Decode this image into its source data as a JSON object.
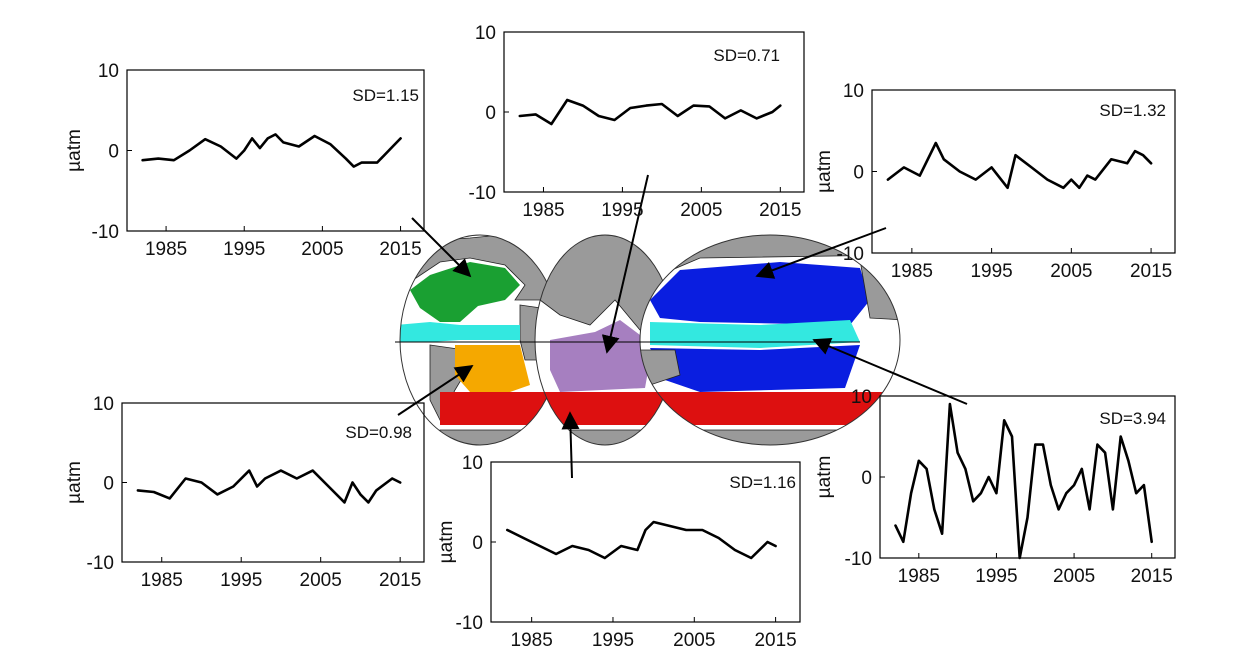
{
  "chart_data": [
    {
      "type": "line",
      "region": "north-atlantic",
      "annotation": "SD=1.15",
      "ylabel": "µatm",
      "ylim": [
        -10,
        10
      ],
      "yticks": [
        10,
        0,
        -10
      ],
      "xlim": [
        1980,
        2018
      ],
      "xticks": [
        1985,
        1995,
        2005,
        2015
      ],
      "x": [
        1982,
        1984,
        1986,
        1988,
        1990,
        1992,
        1994,
        1995,
        1996,
        1997,
        1998,
        1999,
        2000,
        2002,
        2004,
        2006,
        2008,
        2009,
        2010,
        2012,
        2014,
        2015
      ],
      "y": [
        -1.2,
        -1.0,
        -1.2,
        0.0,
        1.4,
        0.5,
        -1.0,
        0.0,
        1.5,
        0.3,
        1.5,
        2.0,
        1.0,
        0.5,
        1.8,
        0.8,
        -1.0,
        -2.0,
        -1.5,
        -1.5,
        0.5,
        1.5
      ]
    },
    {
      "type": "line",
      "region": "indian-ocean",
      "annotation": "SD=0.71",
      "ylabel": "",
      "ylim": [
        -10,
        10
      ],
      "yticks": [
        10,
        0,
        -10
      ],
      "xlim": [
        1980,
        2018
      ],
      "xticks": [
        1985,
        1995,
        2005,
        2015
      ],
      "x": [
        1982,
        1984,
        1986,
        1988,
        1990,
        1992,
        1994,
        1996,
        1998,
        2000,
        2002,
        2004,
        2006,
        2008,
        2010,
        2012,
        2014,
        2015
      ],
      "y": [
        -0.5,
        -0.3,
        -1.5,
        1.5,
        0.8,
        -0.5,
        -1.0,
        0.5,
        0.8,
        1.0,
        -0.5,
        0.8,
        0.7,
        -0.8,
        0.2,
        -0.8,
        0.0,
        0.8
      ]
    },
    {
      "type": "line",
      "region": "north-pacific",
      "annotation": "SD=1.32",
      "ylabel": "µatm",
      "ylim": [
        -10,
        10
      ],
      "yticks": [
        10,
        0,
        -10
      ],
      "xlim": [
        1980,
        2018
      ],
      "xticks": [
        1985,
        1995,
        2005,
        2015
      ],
      "x": [
        1982,
        1984,
        1986,
        1988,
        1989,
        1991,
        1993,
        1995,
        1997,
        1998,
        2000,
        2002,
        2004,
        2005,
        2006,
        2007,
        2008,
        2010,
        2012,
        2013,
        2014,
        2015
      ],
      "y": [
        -1.0,
        0.5,
        -0.5,
        3.5,
        1.5,
        0.0,
        -1.0,
        0.5,
        -2.0,
        2.0,
        0.5,
        -1.0,
        -2.0,
        -1.0,
        -2.0,
        -0.5,
        -1.0,
        1.5,
        1.0,
        2.5,
        2.0,
        1.0
      ]
    },
    {
      "type": "line",
      "region": "south-atlantic",
      "annotation": "SD=0.98",
      "ylabel": "µatm",
      "ylim": [
        -10,
        10
      ],
      "yticks": [
        10,
        0,
        -10
      ],
      "xlim": [
        1980,
        2018
      ],
      "xticks": [
        1985,
        1995,
        2005,
        2015
      ],
      "x": [
        1982,
        1984,
        1986,
        1988,
        1990,
        1992,
        1994,
        1996,
        1997,
        1998,
        2000,
        2002,
        2004,
        2006,
        2008,
        2009,
        2010,
        2011,
        2012,
        2014,
        2015
      ],
      "y": [
        -1.0,
        -1.2,
        -2.0,
        0.5,
        0.0,
        -1.5,
        -0.5,
        1.5,
        -0.5,
        0.5,
        1.5,
        0.5,
        1.5,
        -0.5,
        -2.5,
        0.0,
        -1.5,
        -2.5,
        -1.0,
        0.5,
        0.0
      ]
    },
    {
      "type": "line",
      "region": "southern-ocean",
      "annotation": "SD=1.16",
      "ylabel": "µatm",
      "ylim": [
        -10,
        10
      ],
      "yticks": [
        10,
        0,
        -10
      ],
      "xlim": [
        1980,
        2018
      ],
      "xticks": [
        1985,
        1995,
        2005,
        2015
      ],
      "x": [
        1982,
        1984,
        1986,
        1988,
        1990,
        1992,
        1994,
        1996,
        1998,
        1999,
        2000,
        2002,
        2004,
        2006,
        2008,
        2010,
        2012,
        2014,
        2015
      ],
      "y": [
        1.5,
        0.5,
        -0.5,
        -1.5,
        -0.5,
        -1.0,
        -2.0,
        -0.5,
        -1.0,
        1.5,
        2.5,
        2.0,
        1.5,
        1.5,
        0.5,
        -1.0,
        -2.0,
        0.0,
        -0.5
      ]
    },
    {
      "type": "line",
      "region": "equatorial-pacific",
      "annotation": "SD=3.94",
      "ylabel": "µatm",
      "ylim": [
        -10,
        10
      ],
      "yticks": [
        10,
        0,
        -10
      ],
      "xlim": [
        1980,
        2018
      ],
      "xticks": [
        1985,
        1995,
        2005,
        2015
      ],
      "x": [
        1982,
        1983,
        1984,
        1985,
        1986,
        1987,
        1988,
        1989,
        1990,
        1991,
        1992,
        1993,
        1994,
        1995,
        1996,
        1997,
        1998,
        1999,
        2000,
        2001,
        2002,
        2003,
        2004,
        2005,
        2006,
        2007,
        2008,
        2009,
        2010,
        2011,
        2012,
        2013,
        2014,
        2015
      ],
      "y": [
        -6,
        -8,
        -2,
        2,
        1,
        -4,
        -7,
        9,
        3,
        1,
        -3,
        -2,
        0,
        -2,
        7,
        5,
        -10,
        -5,
        4,
        4,
        -1,
        -4,
        -2,
        -1,
        1,
        -4,
        4,
        3,
        -4,
        5,
        2,
        -2,
        -1,
        -8
      ]
    }
  ],
  "map": {
    "region_colors": {
      "north-atlantic": "#1aa032",
      "equatorial": "#33e8e0",
      "north-pacific": "#0a1ee0",
      "south-atlantic": "#f5a800",
      "indian-ocean": "#a67fc0",
      "southern-ocean": "#dd1010",
      "land": "#9a9a9a"
    }
  }
}
